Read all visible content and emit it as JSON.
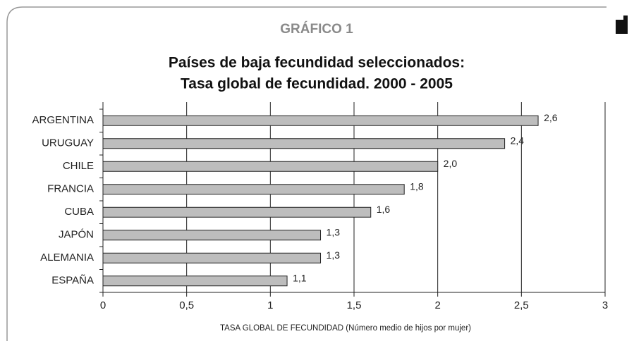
{
  "chart_data": {
    "type": "bar",
    "orientation": "horizontal",
    "title": "GRÁFICO 1",
    "subtitle": [
      "Países de baja fecundidad seleccionados:",
      "Tasa global de fecundidad. 2000 - 2005"
    ],
    "categories": [
      "ARGENTINA",
      "URUGUAY",
      "CHILE",
      "FRANCIA",
      "CUBA",
      "JAPÓN",
      "ALEMANIA",
      "ESPAÑA"
    ],
    "values": [
      2.6,
      2.4,
      2.0,
      1.8,
      1.6,
      1.3,
      1.3,
      1.1
    ],
    "value_labels": [
      "2,6",
      "2,4",
      "2,0",
      "1,8",
      "1,6",
      "1,3",
      "1,3",
      "1,1"
    ],
    "color": "#bdbdbd",
    "xlabel": "TASA GLOBAL DE FECUNDIDAD (Número medio de hijos por mujer)",
    "xlim": [
      0,
      3
    ],
    "xticks": [
      0,
      {
        "value": 0.5,
        "label": "0,5"
      },
      1,
      {
        "value": 1.5,
        "label": "1,5"
      },
      2,
      {
        "value": 2.5,
        "label": "2,5"
      },
      3
    ],
    "grid": true
  }
}
